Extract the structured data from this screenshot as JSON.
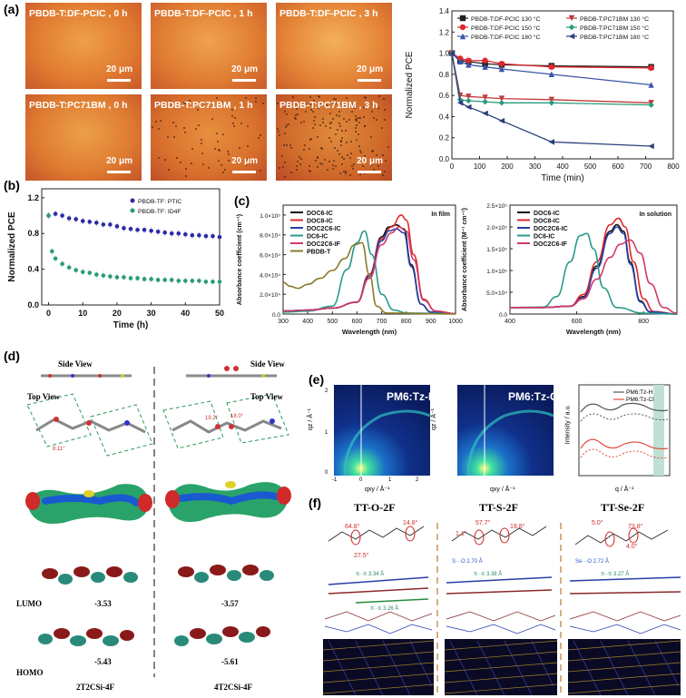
{
  "panels": {
    "a": "(a)",
    "b": "(b)",
    "c": "(c)",
    "d": "(d)",
    "e": "(e)",
    "f": "(f)"
  },
  "micrographs": [
    {
      "title": "PBDB-T:DF-PCIC , 0 h",
      "scale": "20 μm"
    },
    {
      "title": "PBDB-T:DF-PCIC , 1 h",
      "scale": "20 μm"
    },
    {
      "title": "PBDB-T:DF-PCIC , 3 h",
      "scale": "20 μm"
    },
    {
      "title": "PBDB-T:PC71BM , 0 h",
      "scale": "20 μm"
    },
    {
      "title": "PBDB-T:PC71BM , 1 h",
      "scale": "20 μm"
    },
    {
      "title": "PBDB-T:PC71BM , 3 h",
      "scale": "20 μm"
    }
  ],
  "chart_data": [
    {
      "id": "a-right",
      "type": "line",
      "xlabel": "Time (min)",
      "ylabel": "Normalized PCE",
      "xlim": [
        0,
        800
      ],
      "ylim": [
        0.0,
        1.4
      ],
      "xticks": [
        0,
        100,
        200,
        300,
        400,
        500,
        600,
        700,
        800
      ],
      "yticks": [
        0.0,
        0.2,
        0.4,
        0.6,
        0.8,
        1.0,
        1.2,
        1.4
      ],
      "series": [
        {
          "name": "PBDB-T:DF-PCIC 130 °C",
          "color": "#222222",
          "marker": "square",
          "x": [
            0,
            30,
            60,
            120,
            180,
            360,
            720
          ],
          "y": [
            1.0,
            0.93,
            0.92,
            0.9,
            0.89,
            0.88,
            0.87
          ]
        },
        {
          "name": "PBDB-T:DF-PCIC 150 °C",
          "color": "#e0282c",
          "marker": "circle",
          "x": [
            0,
            30,
            60,
            120,
            180,
            360,
            720
          ],
          "y": [
            1.0,
            0.95,
            0.93,
            0.93,
            0.9,
            0.87,
            0.86
          ]
        },
        {
          "name": "PBDB-T:DF-PCIC 180 °C",
          "color": "#3a55a8",
          "marker": "triangle",
          "x": [
            0,
            30,
            60,
            120,
            180,
            360,
            720
          ],
          "y": [
            1.0,
            0.92,
            0.89,
            0.87,
            0.85,
            0.8,
            0.7
          ]
        },
        {
          "name": "PBDB-T:PC71BM 130 °C",
          "color": "#c03a3a",
          "marker": "tri-down",
          "x": [
            0,
            30,
            60,
            120,
            180,
            360,
            720
          ],
          "y": [
            1.0,
            0.6,
            0.59,
            0.58,
            0.57,
            0.56,
            0.53
          ]
        },
        {
          "name": "PBDB-T:PC71BM 150 °C",
          "color": "#2a9a7a",
          "marker": "diamond",
          "x": [
            0,
            30,
            60,
            120,
            180,
            360,
            720
          ],
          "y": [
            1.0,
            0.56,
            0.55,
            0.54,
            0.53,
            0.53,
            0.51
          ]
        },
        {
          "name": "PBDB-T:PC71BM 180 °C",
          "color": "#2a3f7a",
          "marker": "tri-left",
          "x": [
            0,
            30,
            60,
            120,
            180,
            360,
            720
          ],
          "y": [
            1.0,
            0.53,
            0.49,
            0.43,
            0.36,
            0.16,
            0.12
          ]
        }
      ]
    },
    {
      "id": "b",
      "type": "scatter",
      "xlabel": "Time (h)",
      "ylabel": "Normalized PCE",
      "xlim": [
        -2,
        50
      ],
      "ylim": [
        0.0,
        1.3
      ],
      "xticks": [
        0,
        10,
        20,
        30,
        40,
        50
      ],
      "yticks": [
        0.0,
        0.4,
        0.8,
        1.2
      ],
      "series": [
        {
          "name": "PBDB-TF: PTIC",
          "color": "#2a2aa8",
          "x": [
            0,
            2,
            4,
            6,
            8,
            10,
            12,
            14,
            16,
            18,
            20,
            22,
            24,
            26,
            28,
            30,
            32,
            34,
            36,
            38,
            40,
            42,
            44,
            46,
            48,
            50
          ],
          "y": [
            1.0,
            1.02,
            1.0,
            0.97,
            0.96,
            0.94,
            0.93,
            0.92,
            0.9,
            0.9,
            0.88,
            0.86,
            0.85,
            0.84,
            0.84,
            0.83,
            0.82,
            0.81,
            0.8,
            0.8,
            0.79,
            0.78,
            0.78,
            0.77,
            0.77,
            0.76
          ]
        },
        {
          "name": "PBDB-TF: ID4F",
          "color": "#2a9a7a",
          "x": [
            0,
            1,
            2,
            4,
            6,
            8,
            10,
            12,
            14,
            16,
            18,
            20,
            22,
            24,
            26,
            28,
            30,
            32,
            34,
            36,
            38,
            40,
            42,
            44,
            46,
            48,
            50
          ],
          "y": [
            1.0,
            0.6,
            0.52,
            0.46,
            0.42,
            0.39,
            0.37,
            0.36,
            0.34,
            0.33,
            0.32,
            0.31,
            0.31,
            0.3,
            0.3,
            0.29,
            0.29,
            0.28,
            0.28,
            0.28,
            0.27,
            0.27,
            0.27,
            0.27,
            0.26,
            0.26,
            0.26
          ]
        }
      ]
    },
    {
      "id": "c-film",
      "type": "line",
      "annotation": "In film",
      "xlabel": "Wavelength (nm)",
      "ylabel": "Absorbance coefficient (cm⁻¹)",
      "xlim": [
        300,
        1000
      ],
      "ylim": [
        0,
        110000
      ],
      "xticks": [
        300,
        400,
        500,
        600,
        700,
        800,
        900,
        1000
      ],
      "yticks_labels": [
        "0.0",
        "2.0×10⁴",
        "4.0×10⁴",
        "6.0×10⁴",
        "8.0×10⁴",
        "1.0×10⁵"
      ],
      "yticks": [
        0,
        20000,
        40000,
        60000,
        80000,
        100000
      ],
      "series": [
        {
          "name": "DOC6-IC",
          "color": "#111111",
          "x": [
            300,
            400,
            500,
            600,
            650,
            700,
            730,
            760,
            790,
            820,
            860,
            900,
            1000
          ],
          "y": [
            3000,
            4000,
            6000,
            12000,
            40000,
            78000,
            88000,
            90000,
            86000,
            50000,
            10000,
            2000,
            500
          ]
        },
        {
          "name": "DOC8-IC",
          "color": "#e0282c",
          "x": [
            300,
            400,
            500,
            600,
            650,
            700,
            740,
            780,
            800,
            830,
            870,
            920,
            1000
          ],
          "y": [
            3000,
            4000,
            6000,
            12000,
            40000,
            76000,
            88000,
            100000,
            95000,
            60000,
            15000,
            3000,
            500
          ]
        },
        {
          "name": "DOC2C6-IC",
          "color": "#2a3fa8",
          "x": [
            300,
            400,
            500,
            600,
            650,
            700,
            730,
            760,
            790,
            820,
            860,
            900,
            1000
          ],
          "y": [
            3000,
            4000,
            6000,
            12000,
            38000,
            74000,
            84000,
            86000,
            82000,
            48000,
            10000,
            2000,
            500
          ]
        },
        {
          "name": "DC6-IC",
          "color": "#2a9a8a",
          "x": [
            300,
            400,
            500,
            560,
            600,
            630,
            660,
            700,
            750,
            800,
            1000
          ],
          "y": [
            2000,
            3000,
            8000,
            45000,
            72000,
            84000,
            60000,
            20000,
            4000,
            1000,
            500
          ]
        },
        {
          "name": "DOC2C6-IF",
          "color": "#d03a6a",
          "x": [
            300,
            400,
            500,
            600,
            650,
            700,
            740,
            770,
            800,
            830,
            870,
            920,
            1000
          ],
          "y": [
            3000,
            4000,
            6000,
            12000,
            36000,
            70000,
            82000,
            88000,
            84000,
            55000,
            14000,
            3000,
            500
          ]
        },
        {
          "name": "PBDB-T",
          "color": "#8a7a2a",
          "x": [
            300,
            330,
            360,
            400,
            450,
            500,
            550,
            590,
            620,
            650,
            680,
            720,
            1000
          ],
          "y": [
            32000,
            28000,
            26000,
            30000,
            36000,
            44000,
            56000,
            70000,
            72000,
            40000,
            8000,
            1000,
            0
          ]
        }
      ]
    },
    {
      "id": "c-solution",
      "type": "line",
      "annotation": "In solution",
      "xlabel": "Wavelength (nm)",
      "ylabel": "Absorbance coefficient (M⁻¹ cm⁻¹)",
      "xlim": [
        400,
        900
      ],
      "ylim": [
        0,
        250000
      ],
      "xticks": [
        400,
        600,
        800
      ],
      "yticks_labels": [
        "0.0",
        "5.0×10⁴",
        "1.0×10⁵",
        "1.5×10⁵",
        "2.0×10⁵",
        "2.5×10⁵"
      ],
      "yticks": [
        0,
        50000,
        100000,
        150000,
        200000,
        250000
      ],
      "series": [
        {
          "name": "DOC6-IC",
          "color": "#111111",
          "x": [
            400,
            500,
            580,
            620,
            660,
            700,
            720,
            740,
            760,
            790,
            820,
            900
          ],
          "y": [
            15000,
            15000,
            18000,
            40000,
            110000,
            190000,
            205000,
            190000,
            120000,
            30000,
            5000,
            0
          ]
        },
        {
          "name": "DOC8-IC",
          "color": "#e0282c",
          "x": [
            400,
            500,
            580,
            620,
            660,
            700,
            725,
            745,
            770,
            800,
            830,
            900
          ],
          "y": [
            15000,
            15000,
            18000,
            45000,
            120000,
            205000,
            220000,
            200000,
            120000,
            35000,
            6000,
            0
          ]
        },
        {
          "name": "DOC2C6-IC",
          "color": "#2a3fa8",
          "x": [
            400,
            500,
            580,
            620,
            660,
            700,
            720,
            740,
            760,
            790,
            820,
            900
          ],
          "y": [
            15000,
            15000,
            18000,
            38000,
            105000,
            185000,
            200000,
            185000,
            115000,
            28000,
            5000,
            0
          ]
        },
        {
          "name": "DC6-IC",
          "color": "#2a9a8a",
          "x": [
            400,
            500,
            540,
            580,
            610,
            630,
            650,
            680,
            720,
            800,
            900
          ],
          "y": [
            15000,
            16000,
            40000,
            120000,
            180000,
            185000,
            150000,
            60000,
            15000,
            2000,
            0
          ]
        },
        {
          "name": "DOC2C6-IF",
          "color": "#d03a6a",
          "x": [
            400,
            500,
            580,
            620,
            660,
            700,
            730,
            760,
            790,
            820,
            860,
            900
          ],
          "y": [
            15000,
            15000,
            18000,
            35000,
            80000,
            130000,
            160000,
            170000,
            140000,
            70000,
            15000,
            2000
          ]
        }
      ]
    }
  ],
  "b_legend": [
    "PBDB-TF: PTIC",
    "PBDB-TF: ID4F"
  ],
  "c_legend_film": [
    "DOC6-IC",
    "DOC8-IC",
    "DOC2C6-IC",
    "DC6-IC",
    "DOC2C6-IF",
    "PBDB-T"
  ],
  "c_legend_solution": [
    "DOC6-IC",
    "DOC8-IC",
    "DOC2C6-IC",
    "DC6-IC",
    "DOC2C6-IF"
  ],
  "d": {
    "side_view": "Side View",
    "top_view": "Top View",
    "lumo": "LUMO",
    "homo": "HOMO",
    "left_lumo": "-3.53",
    "left_homo": "-5.43",
    "right_lumo": "-3.57",
    "right_homo": "-5.61",
    "left_name": "2T2CSi-4F",
    "right_name": "4T2CSi-4F"
  },
  "e": {
    "map1": "PM6:Tz-H",
    "map2": "PM6:Tz-Cl",
    "qz": "qz / Å⁻¹",
    "qxy": "qxy / Å⁻¹",
    "q": "q / Å⁻¹",
    "intensity": "Intensity / a.u.",
    "legend": [
      "PM6:Tz-H",
      "PM6:Tz-Cl"
    ],
    "ticks_z": [
      "2",
      "1",
      "0"
    ],
    "ticks_xy": [
      "-1",
      "0",
      "1",
      "2"
    ]
  },
  "f": {
    "names": [
      "TT-O-2F",
      "TT-S-2F",
      "TT-Se-2F"
    ]
  }
}
